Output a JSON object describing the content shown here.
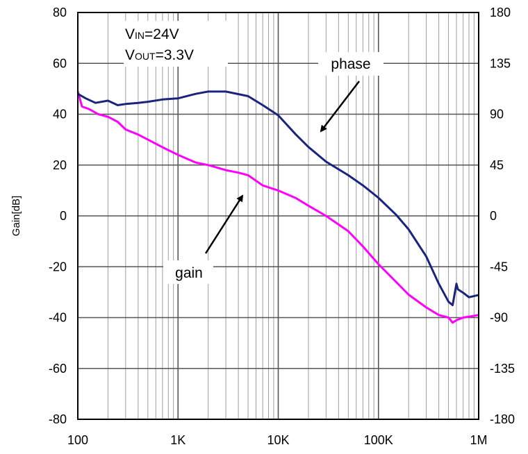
{
  "chart_data": {
    "type": "line",
    "xlabel": "",
    "ylabel": "Gain[dB]",
    "x_scale": "log",
    "xlim": [
      100,
      1000000
    ],
    "x_ticks": [
      {
        "value": 100,
        "label": "100"
      },
      {
        "value": 1000,
        "label": "1K"
      },
      {
        "value": 10000,
        "label": "10K"
      },
      {
        "value": 100000,
        "label": "100K"
      },
      {
        "value": 1000000,
        "label": "1M"
      }
    ],
    "ylim_left": [
      -80,
      80
    ],
    "y_ticks_left": [
      "-80",
      "-60",
      "-40",
      "-20",
      "0",
      "20",
      "40",
      "60",
      "80"
    ],
    "ylim_right": [
      -180,
      180
    ],
    "y_ticks_right": [
      "-180",
      "-135",
      "-90",
      "-45",
      "0",
      "45",
      "90",
      "135",
      "180"
    ],
    "grid": true,
    "series": [
      {
        "name": "gain",
        "color": "#ff00ff",
        "axis": "left",
        "points": [
          [
            100,
            49
          ],
          [
            110,
            43
          ],
          [
            130,
            42
          ],
          [
            160,
            40
          ],
          [
            200,
            39
          ],
          [
            250,
            37
          ],
          [
            300,
            34
          ],
          [
            400,
            32
          ],
          [
            500,
            30
          ],
          [
            700,
            27
          ],
          [
            1000,
            24
          ],
          [
            1500,
            21
          ],
          [
            2000,
            20
          ],
          [
            3000,
            18
          ],
          [
            4000,
            17
          ],
          [
            5000,
            16
          ],
          [
            7000,
            12
          ],
          [
            10000,
            10
          ],
          [
            15000,
            7
          ],
          [
            20000,
            4
          ],
          [
            30000,
            0
          ],
          [
            50000,
            -6
          ],
          [
            70000,
            -12
          ],
          [
            100000,
            -19
          ],
          [
            150000,
            -26
          ],
          [
            200000,
            -31
          ],
          [
            300000,
            -36
          ],
          [
            400000,
            -39
          ],
          [
            500000,
            -40
          ],
          [
            550000,
            -42
          ],
          [
            600000,
            -41
          ],
          [
            700000,
            -40
          ],
          [
            1000000,
            -39
          ]
        ]
      },
      {
        "name": "phase",
        "color": "#1a237e",
        "axis": "right",
        "points": [
          [
            100,
            108
          ],
          [
            120,
            104
          ],
          [
            150,
            100
          ],
          [
            200,
            102
          ],
          [
            250,
            98
          ],
          [
            300,
            99
          ],
          [
            400,
            100
          ],
          [
            500,
            101
          ],
          [
            700,
            103
          ],
          [
            1000,
            104
          ],
          [
            1500,
            108
          ],
          [
            2000,
            110
          ],
          [
            3000,
            110
          ],
          [
            5000,
            106
          ],
          [
            7000,
            98
          ],
          [
            10000,
            89
          ],
          [
            15000,
            72
          ],
          [
            20000,
            61
          ],
          [
            30000,
            48
          ],
          [
            50000,
            36
          ],
          [
            70000,
            27
          ],
          [
            100000,
            16
          ],
          [
            150000,
            1
          ],
          [
            200000,
            -12
          ],
          [
            300000,
            -36
          ],
          [
            400000,
            -60
          ],
          [
            500000,
            -76
          ],
          [
            550000,
            -79
          ],
          [
            600000,
            -60
          ],
          [
            620000,
            -65
          ],
          [
            700000,
            -68
          ],
          [
            800000,
            -72
          ],
          [
            1000000,
            -70
          ]
        ]
      }
    ],
    "annotations": {
      "vin_main": "V",
      "vin_sub": "IN",
      "vin_value": "=24V",
      "vout_main": "V",
      "vout_sub": "OUT",
      "vout_value": "=3.3V",
      "phase_label": "phase",
      "gain_label": "gain"
    }
  }
}
